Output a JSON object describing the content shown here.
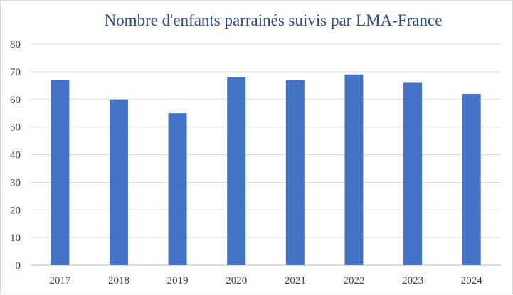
{
  "chart_data": {
    "type": "bar",
    "title": "Nombre d'enfants parrainés suivis par LMA-France",
    "xlabel": "",
    "ylabel": "",
    "categories": [
      "2017",
      "2018",
      "2019",
      "2020",
      "2021",
      "2022",
      "2023",
      "2024"
    ],
    "values": [
      67,
      60,
      55,
      68,
      67,
      69,
      66,
      62
    ],
    "ylim": [
      0,
      80
    ],
    "yticks": [
      0,
      10,
      20,
      30,
      40,
      50,
      60,
      70,
      80
    ],
    "grid": true,
    "legend": "none",
    "bar_color": "#4472c4"
  }
}
